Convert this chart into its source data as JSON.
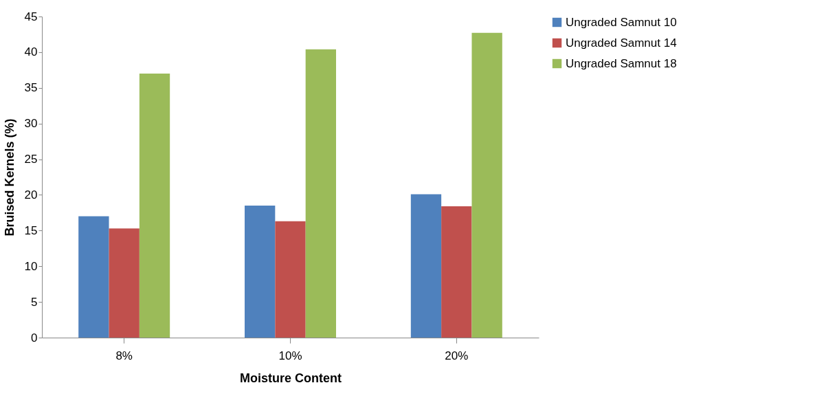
{
  "chart_data": {
    "type": "bar",
    "xlabel": "Moisture Content",
    "ylabel": "Bruised Kernels (%)",
    "categories": [
      "8%",
      "10%",
      "20%"
    ],
    "series": [
      {
        "name": "Ungraded Samnut 10",
        "color": "#4f81bd",
        "values": [
          17.0,
          18.5,
          20.1
        ]
      },
      {
        "name": "Ungraded Samnut 14",
        "color": "#c0504d",
        "values": [
          15.3,
          16.3,
          18.4
        ]
      },
      {
        "name": "Ungraded Samnut 18",
        "color": "#9bbb59",
        "values": [
          37.0,
          40.4,
          42.7
        ]
      }
    ],
    "ylim": [
      0,
      45
    ],
    "yticks": [
      0,
      5,
      10,
      15,
      20,
      25,
      30,
      35,
      40,
      45
    ],
    "grid": false,
    "legend": "right"
  }
}
